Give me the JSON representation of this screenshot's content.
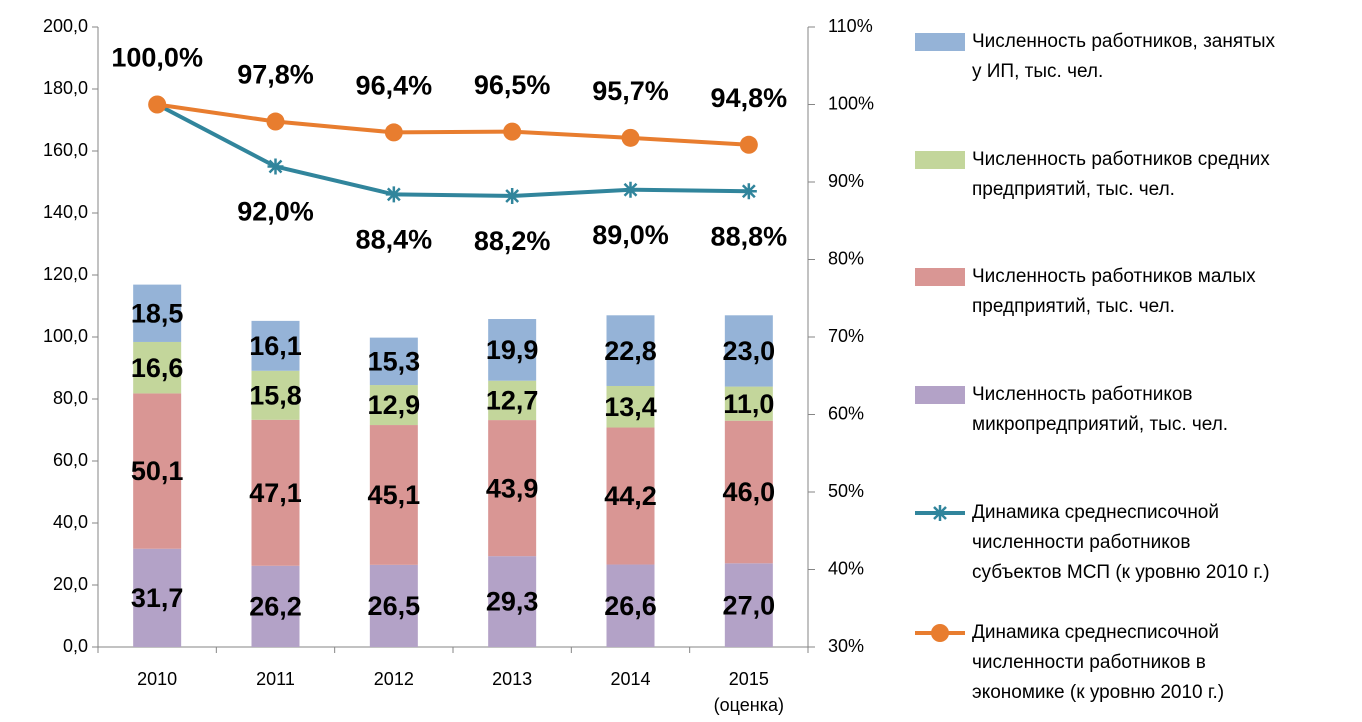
{
  "chart_data": {
    "type": "bar",
    "categories": [
      "2010",
      "2011",
      "2012",
      "2013",
      "2014",
      "2015\n(оценка)"
    ],
    "series": [
      {
        "name": "Численность работников\nмикропредприятий, тыс. чел.",
        "color": "#b3a2c7",
        "values": [
          31.7,
          26.2,
          26.5,
          29.3,
          26.6,
          27.0
        ],
        "value_labels": [
          "31,7",
          "26,2",
          "26,5",
          "29,3",
          "26,6",
          "27,0"
        ]
      },
      {
        "name": "Численность работников малых\nпредприятий, тыс. чел.",
        "color": "#d99694",
        "values": [
          50.1,
          47.1,
          45.1,
          43.9,
          44.2,
          46.0
        ],
        "value_labels": [
          "50,1",
          "47,1",
          "45,1",
          "43,9",
          "44,2",
          "46,0"
        ]
      },
      {
        "name": "Численность работников средних\nпредприятий, тыс. чел.",
        "color": "#c3d69b",
        "values": [
          16.6,
          15.8,
          12.9,
          12.7,
          13.4,
          11.0
        ],
        "value_labels": [
          "16,6",
          "15,8",
          "12,9",
          "12,7",
          "13,4",
          "11,0"
        ]
      },
      {
        "name": "Численность работников, занятых\nу ИП, тыс. чел.",
        "color": "#95b3d7",
        "values": [
          18.5,
          16.1,
          15.3,
          19.9,
          22.8,
          23.0
        ],
        "value_labels": [
          "18,5",
          "16,1",
          "15,3",
          "19,9",
          "22,8",
          "23,0"
        ]
      },
      {
        "name": "Динамика среднесписочной\nчисленности работников\nсубъектов МСП (к уровню 2010 г.)",
        "type": "line",
        "marker": "star",
        "axis": "y2",
        "color": "#31859c",
        "values": [
          100.0,
          92.0,
          88.4,
          88.2,
          89.0,
          88.8
        ],
        "value_labels": [
          null,
          "92,0%",
          "88,4%",
          "88,2%",
          "89,0%",
          "88,8%"
        ]
      },
      {
        "name": "Динамика среднесписочной\nчисленности работников в\nэкономике (к уровню 2010 г.)",
        "type": "line",
        "marker": "circle",
        "axis": "y2",
        "color": "#e87d2f",
        "values": [
          100.0,
          97.8,
          96.4,
          96.5,
          95.7,
          94.8
        ],
        "value_labels": [
          "100,0%",
          "97,8%",
          "96,4%",
          "96,5%",
          "95,7%",
          "94,8%"
        ]
      }
    ],
    "legend_order": [
      3,
      2,
      1,
      0,
      4,
      5
    ],
    "ylim": [
      0,
      200
    ],
    "yticks": [
      {
        "value": 0,
        "label": "0,0"
      },
      {
        "value": 20,
        "label": "20,0"
      },
      {
        "value": 40,
        "label": "40,0"
      },
      {
        "value": 60,
        "label": "60,0"
      },
      {
        "value": 80,
        "label": "80,0"
      },
      {
        "value": 100,
        "label": "100,0"
      },
      {
        "value": 120,
        "label": "120,0"
      },
      {
        "value": 140,
        "label": "140,0"
      },
      {
        "value": 160,
        "label": "160,0"
      },
      {
        "value": 180,
        "label": "180,0"
      },
      {
        "value": 200,
        "label": "200,0"
      }
    ],
    "y2lim": [
      30,
      110
    ],
    "y2ticks": [
      {
        "value": 30,
        "label": "30%"
      },
      {
        "value": 40,
        "label": "40%"
      },
      {
        "value": 50,
        "label": "50%"
      },
      {
        "value": 60,
        "label": "60%"
      },
      {
        "value": 70,
        "label": "70%"
      },
      {
        "value": 80,
        "label": "80%"
      },
      {
        "value": 90,
        "label": "90%"
      },
      {
        "value": 100,
        "label": "100%"
      },
      {
        "value": 110,
        "label": "110%"
      }
    ],
    "legend": "right",
    "grid": false
  }
}
